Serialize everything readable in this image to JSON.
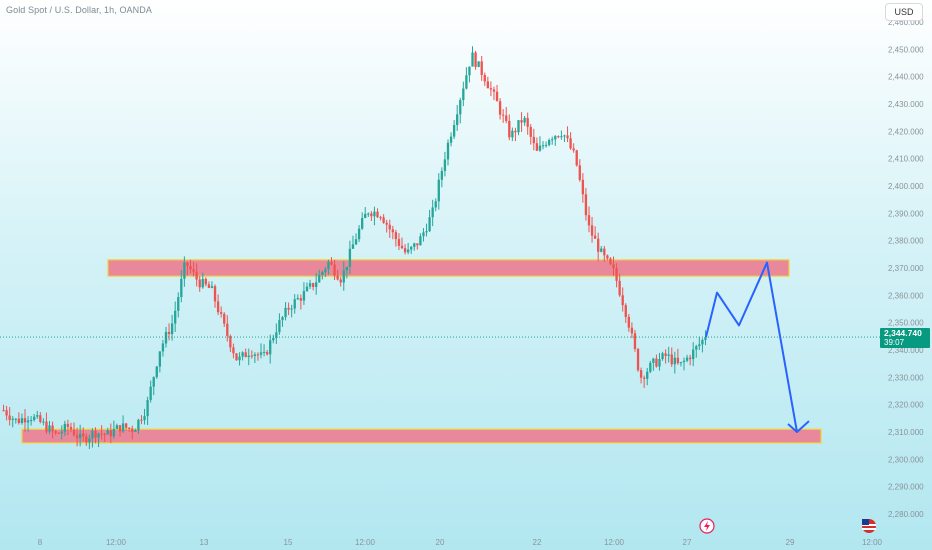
{
  "header": {
    "title": "Gold Spot / U.S. Dollar, 1h, OANDA",
    "currency": "USD"
  },
  "price_label": {
    "value": "2,344.740",
    "timer": "39:07"
  },
  "colors": {
    "up": "#26a69a",
    "down": "#ef5350",
    "zone_fill": "#e8889a",
    "zone_border": "#f5d33b",
    "projection": "#2962ff",
    "price_tag": "#089981"
  },
  "chart_data": {
    "type": "candlestick",
    "ylim": [
      2275,
      2466
    ],
    "y_ticks": [
      "2,280.000",
      "2,290.000",
      "2,300.000",
      "2,310.000",
      "2,320.000",
      "2,330.000",
      "2,340.000",
      "2,350.000",
      "2,360.000",
      "2,370.000",
      "2,380.000",
      "2,390.000",
      "2,400.000",
      "2,410.000",
      "2,420.000",
      "2,430.000",
      "2,440.000",
      "2,450.000",
      "2,460.000"
    ],
    "x_ticks": [
      "8",
      "12:00",
      "13",
      "15",
      "12:00",
      "20",
      "22",
      "12:00",
      "27",
      "29",
      "12:00"
    ],
    "price_path": [
      2318,
      2314,
      2316,
      2313,
      2309,
      2312,
      2307,
      2310,
      2309,
      2312,
      2311,
      2319,
      2340,
      2350,
      2372,
      2365,
      2362,
      2348,
      2336,
      2340,
      2337,
      2348,
      2356,
      2360,
      2365,
      2372,
      2366,
      2380,
      2391,
      2390,
      2382,
      2375,
      2380,
      2390,
      2412,
      2430,
      2448,
      2440,
      2430,
      2418,
      2425,
      2412,
      2418,
      2420,
      2410,
      2385,
      2375,
      2368,
      2352,
      2330,
      2335,
      2338,
      2334,
      2339,
      2344.74
    ],
    "current_price": 2344.74,
    "zones": [
      {
        "label": "resistance",
        "low": 2367,
        "high": 2373
      },
      {
        "label": "support",
        "low": 2306,
        "high": 2311
      }
    ],
    "projection_path": [
      2344.74,
      2361,
      2349,
      2372,
      2310,
      2314
    ],
    "event_icons": [
      "lightning-icon",
      "us-flag-icon"
    ]
  }
}
